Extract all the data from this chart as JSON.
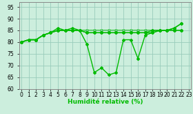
{
  "series": [
    [
      80,
      81,
      81,
      83,
      84,
      86,
      85,
      86,
      85,
      79,
      67,
      69,
      66,
      67,
      81,
      81,
      73,
      83,
      84,
      85,
      85,
      86,
      88
    ],
    [
      80,
      81,
      81,
      83,
      84,
      85,
      85,
      85,
      85,
      84,
      84,
      84,
      84,
      84,
      84,
      84,
      84,
      84,
      84,
      85,
      85,
      85,
      85
    ],
    [
      80,
      81,
      81,
      83,
      84,
      85,
      85,
      85,
      85,
      84,
      84,
      84,
      84,
      84,
      84,
      84,
      84,
      84,
      85,
      85,
      85,
      86,
      88
    ],
    [
      80,
      81,
      81,
      83,
      84,
      85,
      85,
      85,
      85,
      85,
      85,
      85,
      85,
      85,
      85,
      85,
      85,
      85,
      85,
      85,
      85,
      85,
      85
    ]
  ],
  "x": [
    0,
    1,
    2,
    3,
    4,
    5,
    6,
    7,
    8,
    9,
    10,
    11,
    12,
    13,
    14,
    15,
    16,
    17,
    18,
    19,
    20,
    21,
    22
  ],
  "line_color": "#00bb00",
  "bg_color": "#cceedd",
  "grid_color": "#99ccbb",
  "ylim": [
    60,
    97
  ],
  "yticks": [
    60,
    65,
    70,
    75,
    80,
    85,
    90,
    95
  ],
  "xtick_labels": [
    "0",
    "1",
    "2",
    "3",
    "4",
    "5",
    "6",
    "7",
    "8",
    "9",
    "10",
    "11",
    "12",
    "13",
    "14",
    "15",
    "16",
    "17",
    "18",
    "19",
    "20",
    "21",
    "22",
    "23"
  ],
  "xlabel": "Humidité relative (%)",
  "marker": "D",
  "marker_size": 2,
  "linewidth": 1.0,
  "tick_fontsize": 5.5,
  "xlabel_fontsize": 6.5
}
